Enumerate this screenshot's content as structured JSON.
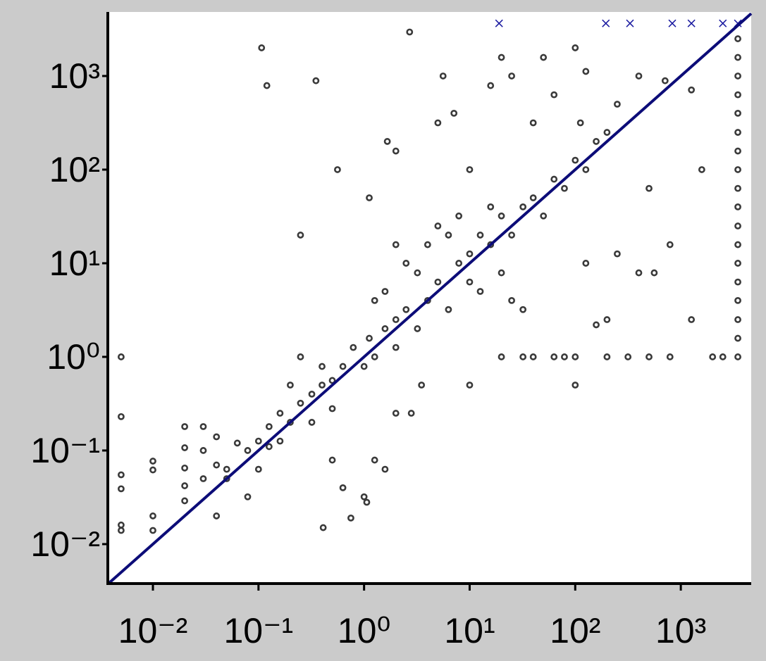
{
  "chart_data": {
    "type": "scatter",
    "log_x": true,
    "log_y": true,
    "xlim": [
      0.00374,
      4642
    ],
    "ylim": [
      0.00379,
      4830
    ],
    "xticks": [
      {
        "value": 0.01,
        "label": "10⁻²"
      },
      {
        "value": 0.1,
        "label": "10⁻¹"
      },
      {
        "value": 1,
        "label": "10⁰"
      },
      {
        "value": 10,
        "label": "10¹"
      },
      {
        "value": 100,
        "label": "10²"
      },
      {
        "value": 1000,
        "label": "10³"
      }
    ],
    "yticks": [
      {
        "value": 0.01,
        "label": "10⁻²"
      },
      {
        "value": 0.1,
        "label": "10⁻¹"
      },
      {
        "value": 1,
        "label": "10⁰"
      },
      {
        "value": 10,
        "label": "10¹"
      },
      {
        "value": 100,
        "label": "10²"
      },
      {
        "value": 1000,
        "label": "10³"
      }
    ],
    "grid": false,
    "identity_line": true,
    "identity_color": "#0c0c78",
    "series": [
      {
        "marker": "o",
        "color": "#3a3a3a",
        "x": [
          0.005,
          0.005,
          0.005,
          0.005,
          0.005,
          0.005,
          0.01,
          0.01,
          0.01,
          0.01,
          0.02,
          0.02,
          0.02,
          0.02,
          0.02,
          0.03,
          0.03,
          0.03,
          0.04,
          0.04,
          0.04,
          0.05,
          0.063,
          0.079,
          0.1,
          0.126,
          0.16,
          0.2,
          0.25,
          0.32,
          0.4,
          0.5,
          0.05,
          0.079,
          0.1,
          0.126,
          0.16,
          0.2,
          0.25,
          0.32,
          0.4,
          0.5,
          0.63,
          0.79,
          1,
          1.12,
          1.26,
          1.58,
          2,
          2.5,
          3.2,
          4,
          5,
          6.3,
          7.9,
          10,
          12.6,
          15.8,
          20,
          25,
          32,
          40,
          50,
          63,
          79,
          100,
          126,
          158,
          4,
          5,
          6.3,
          7.9,
          10,
          12.6,
          15.8,
          3.2,
          2.5,
          2,
          1.58,
          1.26,
          20,
          25,
          2,
          0.107,
          0.12,
          0.35,
          0.25,
          0.56,
          1.12,
          1.66,
          2,
          2.7,
          5.6,
          7.1,
          5,
          10,
          15.8,
          20,
          25,
          40,
          50,
          63,
          100,
          112,
          200,
          250,
          126,
          400,
          710,
          1260,
          1580,
          500,
          790,
          10,
          20,
          32,
          40,
          63,
          79,
          100,
          200,
          316,
          500,
          790,
          2000,
          2500,
          100,
          32,
          158,
          200,
          400,
          560,
          1260,
          126,
          250,
          0.5,
          0.63,
          1.26,
          1,
          0.41,
          0.75,
          1.58,
          2,
          3.5,
          2.8,
          1.06,
          3470,
          3470,
          3470,
          3470,
          3470,
          3470,
          3470,
          3470,
          3470,
          3470,
          3470,
          3470,
          3470,
          3470,
          3470,
          3470,
          3470,
          3470
        ],
        "values": [
          1,
          0.23,
          0.055,
          0.039,
          0.016,
          0.014,
          0.077,
          0.062,
          0.02,
          0.014,
          0.18,
          0.107,
          0.065,
          0.042,
          0.029,
          0.18,
          0.1,
          0.05,
          0.14,
          0.07,
          0.02,
          0.063,
          0.12,
          0.1,
          0.126,
          0.18,
          0.25,
          0.2,
          0.32,
          0.4,
          0.5,
          0.56,
          0.05,
          0.032,
          0.063,
          0.11,
          0.126,
          0.5,
          1,
          0.2,
          0.79,
          0.28,
          0.79,
          1.26,
          0.79,
          1.58,
          1,
          2,
          1.26,
          3.2,
          2,
          4,
          6.3,
          3.2,
          10,
          12.6,
          20,
          15.8,
          32,
          20,
          40,
          50,
          32,
          79,
          63,
          126,
          100,
          200,
          15.8,
          25,
          20,
          32,
          6.3,
          5,
          40,
          7.9,
          10,
          15.8,
          5,
          4,
          7.9,
          4,
          2.5,
          2000,
          790,
          890,
          20,
          100,
          50,
          200,
          158,
          2950,
          1000,
          400,
          316,
          100,
          790,
          1580,
          1000,
          316,
          1580,
          630,
          2000,
          316,
          250,
          500,
          1120,
          1000,
          890,
          710,
          100,
          63,
          15.8,
          0.5,
          1,
          1,
          1,
          1,
          1,
          1,
          1,
          1,
          1,
          1,
          1,
          1,
          0.5,
          3.2,
          2.2,
          2.5,
          7.9,
          7.9,
          2.5,
          10,
          12.6,
          0.079,
          0.04,
          0.079,
          0.032,
          0.015,
          0.019,
          0.063,
          0.25,
          0.5,
          0.25,
          0.028,
          1,
          1.58,
          2.5,
          4,
          6.3,
          10,
          15.8,
          25,
          40,
          63,
          100,
          158,
          250,
          400,
          630,
          1000,
          1580,
          2500
        ]
      },
      {
        "marker": "x",
        "color": "#1a1aa0",
        "x": [
          19,
          195,
          330,
          830,
          1260,
          2500,
          3470
        ],
        "values": [
          3650,
          3650,
          3650,
          3650,
          3650,
          3650,
          3650
        ]
      }
    ]
  }
}
